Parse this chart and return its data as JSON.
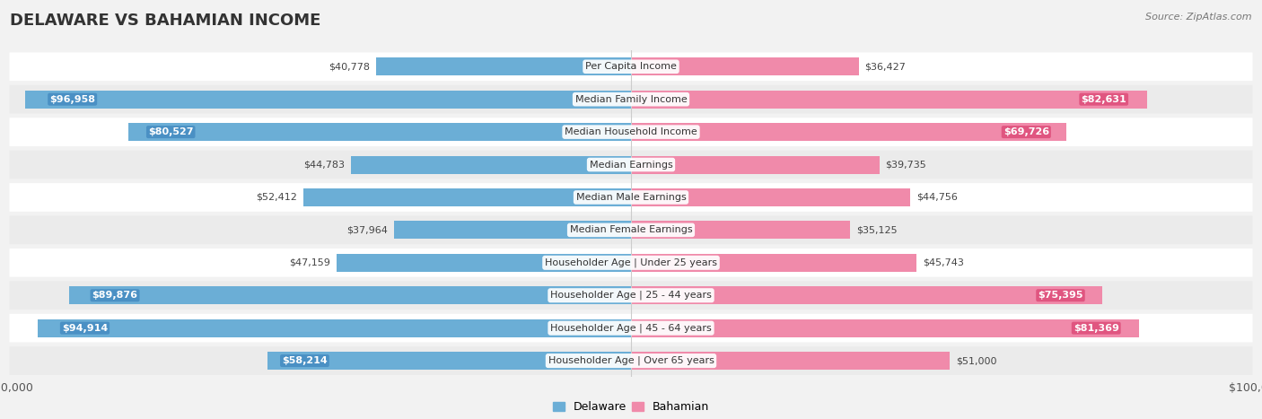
{
  "title": "DELAWARE VS BAHAMIAN INCOME",
  "source": "Source: ZipAtlas.com",
  "categories": [
    "Per Capita Income",
    "Median Family Income",
    "Median Household Income",
    "Median Earnings",
    "Median Male Earnings",
    "Median Female Earnings",
    "Householder Age | Under 25 years",
    "Householder Age | 25 - 44 years",
    "Householder Age | 45 - 64 years",
    "Householder Age | Over 65 years"
  ],
  "delaware_values": [
    40778,
    96958,
    80527,
    44783,
    52412,
    37964,
    47159,
    89876,
    94914,
    58214
  ],
  "bahamian_values": [
    36427,
    82631,
    69726,
    39735,
    44756,
    35125,
    45743,
    75395,
    81369,
    51000
  ],
  "delaware_labels": [
    "$40,778",
    "$96,958",
    "$80,527",
    "$44,783",
    "$52,412",
    "$37,964",
    "$47,159",
    "$89,876",
    "$94,914",
    "$58,214"
  ],
  "bahamian_labels": [
    "$36,427",
    "$82,631",
    "$69,726",
    "$39,735",
    "$44,756",
    "$35,125",
    "$45,743",
    "$75,395",
    "$81,369",
    "$51,000"
  ],
  "max_value": 100000,
  "delaware_color": "#6baed6",
  "bahamian_color": "#f08aaa",
  "delaware_dark_color": "#4a90c4",
  "bahamian_dark_color": "#e05580",
  "bg_color": "#f2f2f2",
  "row_bg_color": "#ffffff",
  "row_alt_bg_color": "#ebebeb",
  "title_fontsize": 13,
  "label_fontsize": 8.5,
  "axis_fontsize": 9,
  "legend_fontsize": 9,
  "inside_label_threshold": 55000,
  "center_line_color": "#cccccc"
}
